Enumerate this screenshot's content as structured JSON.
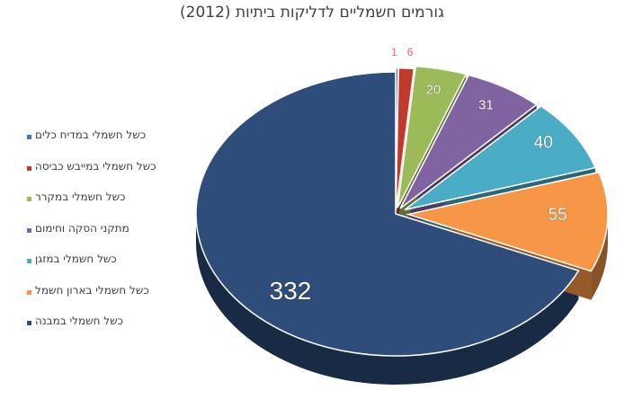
{
  "chart_data": {
    "type": "pie",
    "title": "גורמים חשמליים לדליקות ביתיות (2012)",
    "categories": [
      "כשל חשמלי במדיח כלים",
      "כשל חשמלי במייבש כביסה",
      "כשל חשמלי במקרר",
      "מתקני הסקה וחימום",
      "כשל חשמלי במזגן",
      "כשל חשמלי בארון חשמל",
      "כשל חשמלי במבנה"
    ],
    "values": [
      1,
      6,
      20,
      31,
      40,
      55,
      332
    ],
    "colors": [
      "#4472C4",
      "#C0392B",
      "#9BBB59",
      "#8064A2",
      "#4BACC6",
      "#F79646",
      "#2E4D7B"
    ],
    "label_colors": [
      "#E06666",
      "#E06666",
      "#ffffff",
      "#ffffff",
      "#ffffff",
      "#ffffff",
      "#ffffff"
    ],
    "legend_position": "left",
    "style": "3d-exploded"
  }
}
